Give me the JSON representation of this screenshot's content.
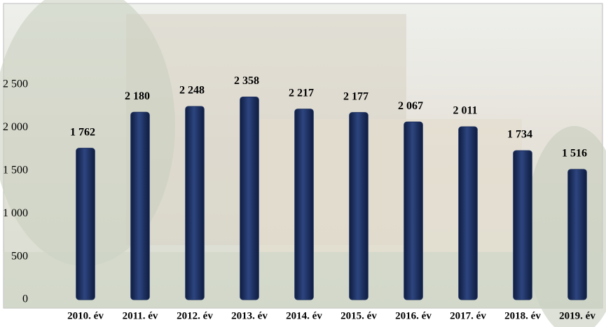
{
  "chart_data": {
    "type": "bar",
    "categories": [
      "2010. év",
      "2011. év",
      "2012. év",
      "2013. év",
      "2014. év",
      "2015. év",
      "2016. év",
      "2017. év",
      "2018. év",
      "2019. év"
    ],
    "values": [
      1762,
      2180,
      2248,
      2358,
      2217,
      2177,
      2067,
      2011,
      1734,
      1516
    ],
    "value_labels": [
      "1 762",
      "2 180",
      "2 248",
      "2 358",
      "2 217",
      "2 177",
      "2 067",
      "2 011",
      "1 734",
      "1 516"
    ],
    "color": "#1c2f5e",
    "ylim": [
      0,
      2500
    ],
    "yticks": [
      0,
      500,
      {
        "value": 1000,
        "label": "1 000"
      },
      {
        "value": 1500,
        "label": "1 500"
      },
      {
        "value": 2000,
        "label": "2 000"
      },
      {
        "value": 2500,
        "label": "2 500"
      }
    ]
  }
}
